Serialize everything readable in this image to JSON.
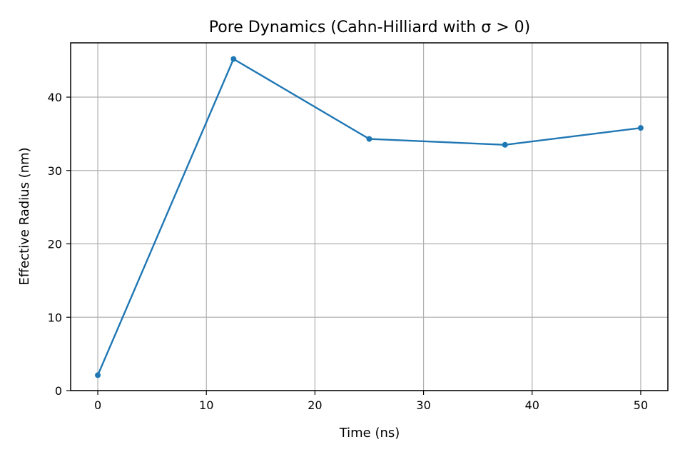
{
  "chart_data": {
    "type": "line",
    "title": "Pore Dynamics (Cahn-Hilliard with σ > 0)",
    "xlabel": "Time (ns)",
    "ylabel": "Effective Radius (nm)",
    "xlim": [
      -2.5,
      52.5
    ],
    "ylim": [
      0,
      47.4
    ],
    "xticks": [
      0,
      10,
      20,
      30,
      40,
      50
    ],
    "yticks": [
      0,
      10,
      20,
      30,
      40
    ],
    "grid": true,
    "series": [
      {
        "color": "#1f77b4",
        "marker": "circle",
        "x": [
          0,
          12.5,
          25,
          37.5,
          50
        ],
        "y": [
          2.1,
          45.2,
          34.3,
          33.5,
          35.8
        ]
      }
    ]
  }
}
